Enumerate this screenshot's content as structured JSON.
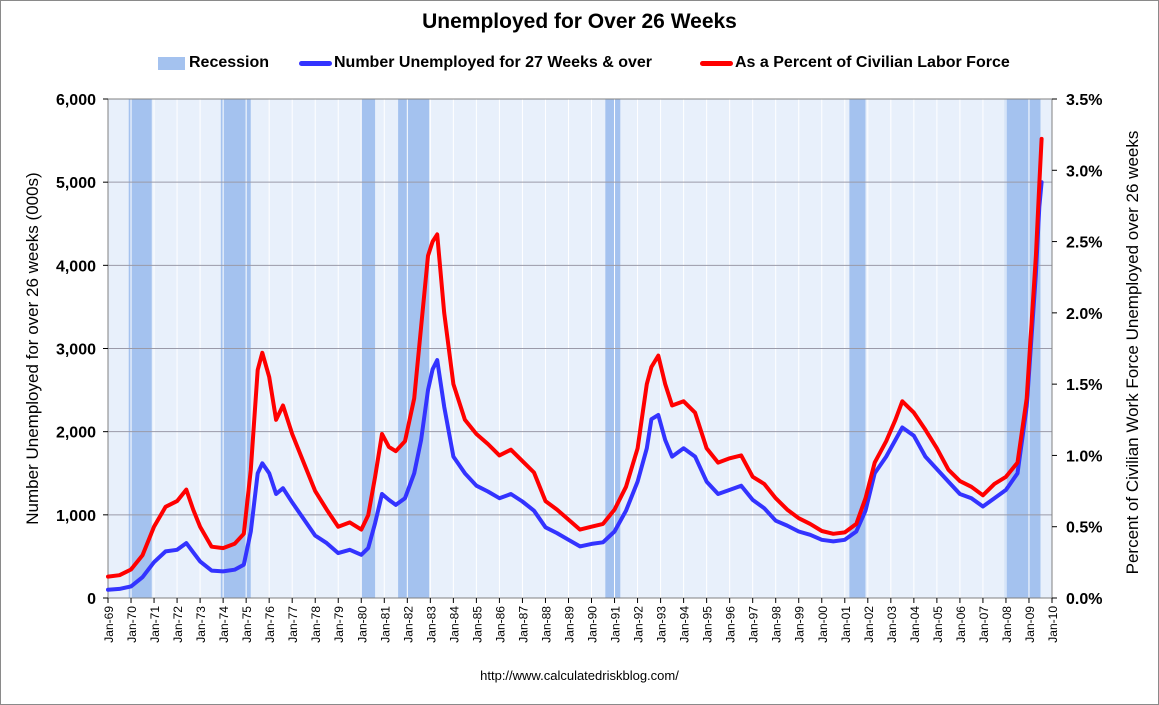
{
  "chart_data": {
    "type": "line",
    "title": "Unemployed for Over 26 Weeks",
    "source": "http://www.calculatedriskblog.com/",
    "legend": {
      "position": "top",
      "recession_label": "Recession",
      "series_labels": [
        "Number Unemployed for 27 Weeks & over",
        "As a Percent of Civilian Labor Force"
      ]
    },
    "ylabel": "Number Unemployed for over 26 weeks (000s)",
    "y2label": "Percent of Civilian Work Force Unemployed over 26 weeks",
    "ylim": [
      0,
      6000
    ],
    "y2lim": [
      0,
      3.5
    ],
    "xlim": [
      1969.0,
      2010.0
    ],
    "grid": true,
    "y_ticks": [
      "0",
      "1,000",
      "2,000",
      "3,000",
      "4,000",
      "5,000",
      "6,000"
    ],
    "y_tick_values": [
      0,
      1000,
      2000,
      3000,
      4000,
      5000,
      6000
    ],
    "y2_ticks": [
      "0.0%",
      "0.5%",
      "1.0%",
      "1.5%",
      "2.0%",
      "2.5%",
      "3.0%",
      "3.5%"
    ],
    "y2_tick_values": [
      0,
      0.5,
      1.0,
      1.5,
      2.0,
      2.5,
      3.0,
      3.5
    ],
    "x_ticks": [
      "Jan-69",
      "Jan-70",
      "Jan-71",
      "Jan-72",
      "Jan-73",
      "Jan-74",
      "Jan-75",
      "Jan-76",
      "Jan-77",
      "Jan-78",
      "Jan-79",
      "Jan-80",
      "Jan-81",
      "Jan-82",
      "Jan-83",
      "Jan-84",
      "Jan-85",
      "Jan-86",
      "Jan-87",
      "Jan-88",
      "Jan-89",
      "Jan-90",
      "Jan-91",
      "Jan-92",
      "Jan-93",
      "Jan-94",
      "Jan-95",
      "Jan-96",
      "Jan-97",
      "Jan-98",
      "Jan-99",
      "Jan-00",
      "Jan-01",
      "Jan-02",
      "Jan-03",
      "Jan-04",
      "Jan-05",
      "Jan-06",
      "Jan-07",
      "Jan-08",
      "Jan-09",
      "Jan-10"
    ],
    "recessions": [
      [
        1969.9,
        1970.9
      ],
      [
        1973.9,
        1975.2
      ],
      [
        1980.0,
        1980.6
      ],
      [
        1981.6,
        1982.95
      ],
      [
        1990.6,
        1991.25
      ],
      [
        2001.2,
        2001.9
      ],
      [
        2007.95,
        2009.5
      ]
    ],
    "series": [
      {
        "name": "Number Unemployed for 27 Weeks & over",
        "axis": "left",
        "color": "#3333ff",
        "points": [
          [
            1969.0,
            100
          ],
          [
            1969.5,
            110
          ],
          [
            1970.0,
            140
          ],
          [
            1970.5,
            250
          ],
          [
            1971.0,
            430
          ],
          [
            1971.5,
            560
          ],
          [
            1972.0,
            580
          ],
          [
            1972.4,
            660
          ],
          [
            1972.7,
            550
          ],
          [
            1973.0,
            440
          ],
          [
            1973.5,
            330
          ],
          [
            1974.0,
            320
          ],
          [
            1974.5,
            340
          ],
          [
            1974.9,
            400
          ],
          [
            1975.2,
            800
          ],
          [
            1975.5,
            1500
          ],
          [
            1975.7,
            1620
          ],
          [
            1976.0,
            1500
          ],
          [
            1976.3,
            1250
          ],
          [
            1976.6,
            1320
          ],
          [
            1977.0,
            1150
          ],
          [
            1977.5,
            950
          ],
          [
            1978.0,
            750
          ],
          [
            1978.5,
            660
          ],
          [
            1979.0,
            540
          ],
          [
            1979.5,
            580
          ],
          [
            1980.0,
            520
          ],
          [
            1980.3,
            600
          ],
          [
            1980.6,
            900
          ],
          [
            1980.9,
            1250
          ],
          [
            1981.2,
            1180
          ],
          [
            1981.5,
            1120
          ],
          [
            1981.9,
            1200
          ],
          [
            1982.3,
            1500
          ],
          [
            1982.6,
            1900
          ],
          [
            1982.9,
            2500
          ],
          [
            1983.1,
            2750
          ],
          [
            1983.3,
            2860
          ],
          [
            1983.6,
            2300
          ],
          [
            1984.0,
            1700
          ],
          [
            1984.5,
            1500
          ],
          [
            1985.0,
            1350
          ],
          [
            1985.5,
            1280
          ],
          [
            1986.0,
            1200
          ],
          [
            1986.5,
            1250
          ],
          [
            1987.0,
            1160
          ],
          [
            1987.5,
            1050
          ],
          [
            1988.0,
            850
          ],
          [
            1988.5,
            780
          ],
          [
            1989.0,
            700
          ],
          [
            1989.5,
            620
          ],
          [
            1990.0,
            650
          ],
          [
            1990.5,
            670
          ],
          [
            1991.0,
            800
          ],
          [
            1991.5,
            1050
          ],
          [
            1992.0,
            1400
          ],
          [
            1992.4,
            1800
          ],
          [
            1992.6,
            2150
          ],
          [
            1992.9,
            2200
          ],
          [
            1993.2,
            1900
          ],
          [
            1993.5,
            1700
          ],
          [
            1994.0,
            1800
          ],
          [
            1994.5,
            1700
          ],
          [
            1995.0,
            1400
          ],
          [
            1995.5,
            1250
          ],
          [
            1996.0,
            1300
          ],
          [
            1996.5,
            1350
          ],
          [
            1997.0,
            1180
          ],
          [
            1997.5,
            1080
          ],
          [
            1998.0,
            930
          ],
          [
            1998.5,
            870
          ],
          [
            1999.0,
            800
          ],
          [
            1999.5,
            760
          ],
          [
            2000.0,
            700
          ],
          [
            2000.5,
            680
          ],
          [
            2001.0,
            700
          ],
          [
            2001.5,
            800
          ],
          [
            2001.9,
            1050
          ],
          [
            2002.3,
            1500
          ],
          [
            2002.8,
            1700
          ],
          [
            2003.2,
            1900
          ],
          [
            2003.5,
            2050
          ],
          [
            2004.0,
            1950
          ],
          [
            2004.5,
            1700
          ],
          [
            2005.0,
            1550
          ],
          [
            2005.5,
            1400
          ],
          [
            2006.0,
            1250
          ],
          [
            2006.5,
            1200
          ],
          [
            2007.0,
            1100
          ],
          [
            2007.5,
            1200
          ],
          [
            2008.0,
            1300
          ],
          [
            2008.5,
            1500
          ],
          [
            2008.9,
            2300
          ],
          [
            2009.1,
            3100
          ],
          [
            2009.3,
            3900
          ],
          [
            2009.45,
            4700
          ],
          [
            2009.55,
            5000
          ]
        ]
      },
      {
        "name": "As a Percent of Civilian Labor Force",
        "axis": "right",
        "color": "#ff0000",
        "points": [
          [
            1969.0,
            0.15
          ],
          [
            1969.5,
            0.16
          ],
          [
            1970.0,
            0.2
          ],
          [
            1970.5,
            0.3
          ],
          [
            1971.0,
            0.5
          ],
          [
            1971.5,
            0.64
          ],
          [
            1972.0,
            0.68
          ],
          [
            1972.4,
            0.76
          ],
          [
            1972.7,
            0.62
          ],
          [
            1973.0,
            0.5
          ],
          [
            1973.5,
            0.36
          ],
          [
            1974.0,
            0.35
          ],
          [
            1974.5,
            0.38
          ],
          [
            1974.9,
            0.45
          ],
          [
            1975.2,
            0.9
          ],
          [
            1975.5,
            1.6
          ],
          [
            1975.7,
            1.72
          ],
          [
            1976.0,
            1.55
          ],
          [
            1976.3,
            1.25
          ],
          [
            1976.6,
            1.35
          ],
          [
            1977.0,
            1.15
          ],
          [
            1977.5,
            0.95
          ],
          [
            1978.0,
            0.75
          ],
          [
            1978.5,
            0.62
          ],
          [
            1979.0,
            0.5
          ],
          [
            1979.5,
            0.53
          ],
          [
            1980.0,
            0.48
          ],
          [
            1980.3,
            0.58
          ],
          [
            1980.6,
            0.85
          ],
          [
            1980.9,
            1.15
          ],
          [
            1981.2,
            1.06
          ],
          [
            1981.5,
            1.03
          ],
          [
            1981.9,
            1.1
          ],
          [
            1982.3,
            1.4
          ],
          [
            1982.6,
            1.9
          ],
          [
            1982.9,
            2.4
          ],
          [
            1983.1,
            2.5
          ],
          [
            1983.3,
            2.55
          ],
          [
            1983.6,
            2.0
          ],
          [
            1984.0,
            1.5
          ],
          [
            1984.5,
            1.25
          ],
          [
            1985.0,
            1.15
          ],
          [
            1985.5,
            1.08
          ],
          [
            1986.0,
            1.0
          ],
          [
            1986.5,
            1.04
          ],
          [
            1987.0,
            0.96
          ],
          [
            1987.5,
            0.88
          ],
          [
            1988.0,
            0.68
          ],
          [
            1988.5,
            0.62
          ],
          [
            1989.0,
            0.55
          ],
          [
            1989.5,
            0.48
          ],
          [
            1990.0,
            0.5
          ],
          [
            1990.5,
            0.52
          ],
          [
            1991.0,
            0.62
          ],
          [
            1991.5,
            0.78
          ],
          [
            1992.0,
            1.05
          ],
          [
            1992.4,
            1.5
          ],
          [
            1992.6,
            1.62
          ],
          [
            1992.9,
            1.7
          ],
          [
            1993.2,
            1.5
          ],
          [
            1993.5,
            1.35
          ],
          [
            1994.0,
            1.38
          ],
          [
            1994.5,
            1.3
          ],
          [
            1995.0,
            1.05
          ],
          [
            1995.5,
            0.95
          ],
          [
            1996.0,
            0.98
          ],
          [
            1996.5,
            1.0
          ],
          [
            1997.0,
            0.85
          ],
          [
            1997.5,
            0.8
          ],
          [
            1998.0,
            0.7
          ],
          [
            1998.5,
            0.62
          ],
          [
            1999.0,
            0.56
          ],
          [
            1999.5,
            0.52
          ],
          [
            2000.0,
            0.47
          ],
          [
            2000.5,
            0.45
          ],
          [
            2001.0,
            0.46
          ],
          [
            2001.5,
            0.52
          ],
          [
            2001.9,
            0.7
          ],
          [
            2002.3,
            0.95
          ],
          [
            2002.8,
            1.1
          ],
          [
            2003.2,
            1.25
          ],
          [
            2003.5,
            1.38
          ],
          [
            2004.0,
            1.3
          ],
          [
            2004.5,
            1.18
          ],
          [
            2005.0,
            1.05
          ],
          [
            2005.5,
            0.9
          ],
          [
            2006.0,
            0.82
          ],
          [
            2006.5,
            0.78
          ],
          [
            2007.0,
            0.72
          ],
          [
            2007.5,
            0.8
          ],
          [
            2008.0,
            0.85
          ],
          [
            2008.5,
            0.95
          ],
          [
            2008.9,
            1.4
          ],
          [
            2009.1,
            1.9
          ],
          [
            2009.3,
            2.4
          ],
          [
            2009.45,
            2.9
          ],
          [
            2009.55,
            3.22
          ]
        ]
      }
    ],
    "colors": {
      "recession": "#a4c2ef",
      "plot_background": "#e8f0fb",
      "grid": "#9a9aa8"
    }
  }
}
